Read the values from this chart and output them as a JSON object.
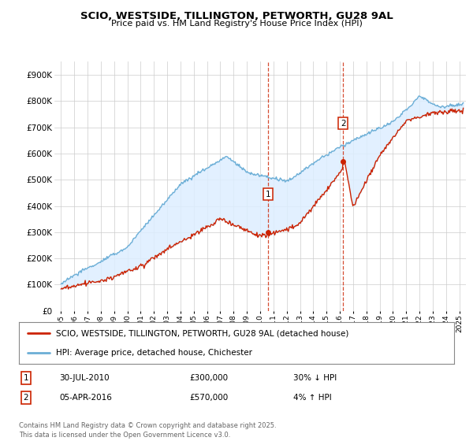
{
  "title": "SCIO, WESTSIDE, TILLINGTON, PETWORTH, GU28 9AL",
  "subtitle": "Price paid vs. HM Land Registry's House Price Index (HPI)",
  "ylabel_ticks": [
    "£0",
    "£100K",
    "£200K",
    "£300K",
    "£400K",
    "£500K",
    "£600K",
    "£700K",
    "£800K",
    "£900K"
  ],
  "ytick_values": [
    0,
    100000,
    200000,
    300000,
    400000,
    500000,
    600000,
    700000,
    800000,
    900000
  ],
  "ylim": [
    0,
    950000
  ],
  "xlim_start": 1994.5,
  "xlim_end": 2025.5,
  "hpi_color": "#6baed6",
  "hpi_fill_color": "#ddeeff",
  "price_color": "#cc2200",
  "marker1_year": 2010.58,
  "marker1_price": 300000,
  "marker2_year": 2016.26,
  "marker2_price": 570000,
  "legend_line1": "SCIO, WESTSIDE, TILLINGTON, PETWORTH, GU28 9AL (detached house)",
  "legend_line2": "HPI: Average price, detached house, Chichester",
  "table_row1": [
    "1",
    "30-JUL-2010",
    "£300,000",
    "30% ↓ HPI"
  ],
  "table_row2": [
    "2",
    "05-APR-2016",
    "£570,000",
    "4% ↑ HPI"
  ],
  "footnote": "Contains HM Land Registry data © Crown copyright and database right 2025.\nThis data is licensed under the Open Government Licence v3.0.",
  "background_color": "#ffffff",
  "grid_color": "#cccccc"
}
